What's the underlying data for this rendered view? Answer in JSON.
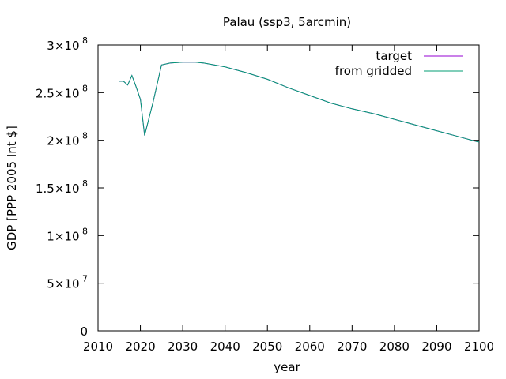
{
  "chart_data": {
    "type": "line",
    "title": "Palau (ssp3, 5arcmin)",
    "xlabel": "year",
    "ylabel": "GDP [PPP 2005 Int $]",
    "xlim": [
      2010,
      2100
    ],
    "ylim": [
      0,
      300000000
    ],
    "grid": false,
    "legend_position": "top-right",
    "x_ticks": [
      2010,
      2020,
      2030,
      2040,
      2050,
      2060,
      2070,
      2080,
      2090,
      2100
    ],
    "x_tick_labels": [
      "2010",
      "2020",
      "2030",
      "2040",
      "2050",
      "2060",
      "2070",
      "2080",
      "2090",
      "2100"
    ],
    "y_ticks": [
      {
        "value": 0,
        "mantissa": "0",
        "exp": ""
      },
      {
        "value": 50000000,
        "mantissa": "5×10",
        "exp": "7"
      },
      {
        "value": 100000000,
        "mantissa": "1×10",
        "exp": "8"
      },
      {
        "value": 150000000,
        "mantissa": "1.5×10",
        "exp": "8"
      },
      {
        "value": 200000000,
        "mantissa": "2×10",
        "exp": "8"
      },
      {
        "value": 250000000,
        "mantissa": "2.5×10",
        "exp": "8"
      },
      {
        "value": 300000000,
        "mantissa": "3×10",
        "exp": "8"
      }
    ],
    "x": [
      2015,
      2016,
      2017,
      2018,
      2019,
      2020,
      2021,
      2023,
      2025,
      2027,
      2030,
      2033,
      2035,
      2040,
      2045,
      2050,
      2055,
      2060,
      2065,
      2070,
      2075,
      2080,
      2085,
      2090,
      2095,
      2100
    ],
    "series": [
      {
        "name": "target",
        "color": "#9400d3",
        "values": [
          262000000,
          262000000,
          258000000,
          268000000,
          256000000,
          243000000,
          205000000,
          240000000,
          279000000,
          281000000,
          282000000,
          282000000,
          281000000,
          277000000,
          271000000,
          264000000,
          255000000,
          247000000,
          239000000,
          233000000,
          228000000,
          222000000,
          216000000,
          210000000,
          204000000,
          198000000
        ]
      },
      {
        "name": "from gridded",
        "color": "#009e73",
        "values": [
          262000000,
          262000000,
          258000000,
          268000000,
          256000000,
          243000000,
          205000000,
          240000000,
          279000000,
          281000000,
          282000000,
          282000000,
          281000000,
          277000000,
          271000000,
          264000000,
          255000000,
          247000000,
          239000000,
          233000000,
          228000000,
          222000000,
          216000000,
          210000000,
          204000000,
          198000000
        ]
      }
    ]
  }
}
